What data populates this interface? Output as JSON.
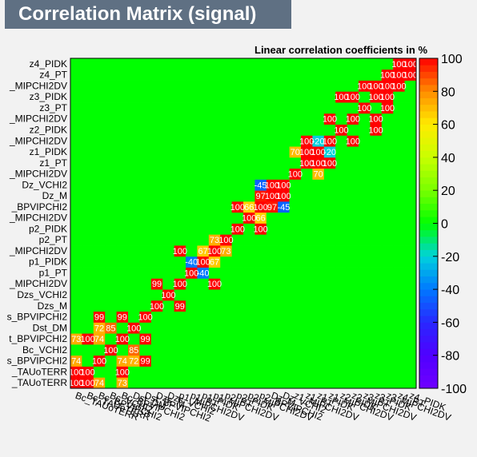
{
  "title": "Correlation Matrix (signal)",
  "subtitle": "Linear correlation coefficients in %",
  "chart_data": {
    "type": "heatmap",
    "variables": [
      "Bc_TAUoTERR",
      "Bc_TAUoTERR",
      "Bc_BPVIPCHI2",
      "Bc_VCHI2",
      "Bc_BPVIPCHI2",
      "Dst_DM",
      "Dst_BPVIPCHI2",
      "Dzs_M",
      "Dzs_VCHI2",
      "p1_MIPCHI2DV",
      "p1_PT",
      "p1_PIDK",
      "p1_MIPCHI2DV",
      "p2_PT",
      "p2_PIDK",
      "p2_MIPCHI2DV",
      "p2_BPVIPCHI2",
      "Dz_M",
      "Dz_VCHI2",
      "z1_MIPCHI2DV",
      "z1_PT",
      "z1_PIDK",
      "z1_MIPCHI2DV",
      "z2_PIDK",
      "z2_MIPCHI2DV",
      "z3_PT",
      "z3_PIDK",
      "z3_MIPCHI2DV",
      "z4_PT",
      "z4_PIDK"
    ],
    "row_labels_visible": [
      "z4_PIDK",
      "z4_PT",
      "_MIPCHI2DV",
      "z3_PIDK",
      "z3_PT",
      "_MIPCHI2DV",
      "z2_PIDK",
      "_MIPCHI2DV",
      "z1_PIDK",
      "z1_PT",
      "_MIPCHI2DV",
      "Dz_VCHI2",
      "Dz_M",
      "_BPVIPCHI2",
      "_MIPCHI2DV",
      "p2_PIDK",
      "p2_PT",
      "_MIPCHI2DV",
      "p1_PIDK",
      "p1_PT",
      "_MIPCHI2DV",
      "Dzs_VCHI2",
      "Dzs_M",
      "s_BPVIPCHI2",
      "Dst_DM",
      "t_BPVIPCHI2",
      "Bc_VCHI2",
      "s_BPVIPCHI2",
      "_TAUoTERR",
      "_TAUoTERR"
    ],
    "col_labels_visible": [
      "Bc_TAUoTERR",
      "Bc_TAUoTERR",
      "Bc_BPVIPCHI2",
      "Bc_VCHI2",
      "Bc_BPVIPCHI2",
      "Dst_DM",
      "Dst_BPVIPCHI2",
      "Dzs_M",
      "Dzs_VCHI2",
      "p1_MIPCHI2DV",
      "p1_PT",
      "p1_PIDK",
      "p1_MIPCHI2DV",
      "p2_PT",
      "p2_PIDK",
      "p2_MIPCHI2DV",
      "p2_BPVIPCHI2",
      "Dz_M",
      "Dz_VCHI2",
      "z1_MIPCHI2DV",
      "z1_PT",
      "z1_PIDK",
      "z1_MIPCHI2DV",
      "z2_PIDK",
      "z2_MIPCHI2DV",
      "z3_PT",
      "z3_PIDK",
      "z3_MIPCHI2DV",
      "z4_PT",
      "z4_PIDK"
    ],
    "zlim": [
      -100,
      100
    ],
    "colorbar_ticks": [
      100,
      80,
      60,
      40,
      20,
      0,
      -20,
      -40,
      -60,
      -80,
      -100
    ],
    "diagonal": 100,
    "strong": [
      {
        "row": 0,
        "col": 1,
        "value": 100
      },
      {
        "row": 0,
        "col": 2,
        "value": 74
      },
      {
        "row": 0,
        "col": 4,
        "value": 73
      },
      {
        "row": 1,
        "col": 4,
        "value": 100
      },
      {
        "row": 2,
        "col": 4,
        "value": 74
      },
      {
        "row": 2,
        "col": 5,
        "value": 72
      },
      {
        "row": 2,
        "col": 6,
        "value": 99
      },
      {
        "row": 4,
        "col": 6,
        "value": 99
      },
      {
        "row": 3,
        "col": 5,
        "value": 85
      },
      {
        "row": 7,
        "col": 9,
        "value": 99
      },
      {
        "row": 9,
        "col": 12,
        "value": 100
      },
      {
        "row": 10,
        "col": 11,
        "value": -40
      },
      {
        "row": 11,
        "col": 12,
        "value": 67
      },
      {
        "row": 12,
        "col": 13,
        "value": 73
      },
      {
        "row": 14,
        "col": 16,
        "value": 100
      },
      {
        "row": 15,
        "col": 16,
        "value": 66
      },
      {
        "row": 16,
        "col": 17,
        "value": 97
      },
      {
        "row": 16,
        "col": 18,
        "value": -45
      },
      {
        "row": 17,
        "col": 18,
        "value": 100
      },
      {
        "row": 19,
        "col": 21,
        "value": 70
      },
      {
        "row": 20,
        "col": 21,
        "value": 100
      },
      {
        "row": 20,
        "col": 22,
        "value": 100
      },
      {
        "row": 21,
        "col": 22,
        "value": -20
      },
      {
        "row": 22,
        "col": 24,
        "value": 100
      },
      {
        "row": 23,
        "col": 26,
        "value": 100
      },
      {
        "row": 24,
        "col": 26,
        "value": 100
      },
      {
        "row": 25,
        "col": 27,
        "value": 100
      },
      {
        "row": 26,
        "col": 27,
        "value": 100
      },
      {
        "row": 27,
        "col": 28,
        "value": 100
      },
      {
        "row": 28,
        "col": 29,
        "value": 100
      }
    ]
  },
  "colors": {
    "neutral": "#00ff00",
    "frame": "#000000",
    "background": "#f2f2f2",
    "title_box": "#5f7083"
  }
}
